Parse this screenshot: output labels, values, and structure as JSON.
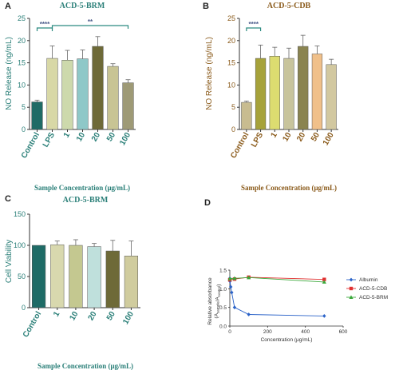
{
  "panels": {
    "A": {
      "letter": "A"
    },
    "B": {
      "letter": "B"
    },
    "C": {
      "letter": "C"
    },
    "D": {
      "letter": "D"
    }
  },
  "chart_data": [
    {
      "id": "A",
      "type": "bar",
      "title": "ACD-5-BRM",
      "xlabel": "Sample Concentration (μg/mL)",
      "ylabel": "NO Release (ng/mL)",
      "ylim": [
        0,
        25
      ],
      "yticks": [
        0,
        5,
        10,
        15,
        20,
        25
      ],
      "categories": [
        "Control",
        "LPS",
        "1",
        "10",
        "20",
        "50",
        "100"
      ],
      "values": [
        6.2,
        16.0,
        15.6,
        15.9,
        18.7,
        14.2,
        10.5
      ],
      "errors": [
        0.4,
        2.8,
        2.2,
        2.0,
        2.2,
        0.6,
        0.7
      ],
      "colors": [
        "#1e6b66",
        "#d8d8a6",
        "#cdd9ac",
        "#8ec8c8",
        "#6e6a38",
        "#c8c494",
        "#9e9a76"
      ],
      "text_color": "#2a7f78",
      "significance": [
        {
          "label": "****",
          "from": 0,
          "to": 1
        },
        {
          "label": "**",
          "from": 1,
          "to": 6
        }
      ]
    },
    {
      "id": "B",
      "type": "bar",
      "title": "ACD-5-CDB",
      "xlabel": "Sample Concentration (μg/mL)",
      "ylabel": "NO Release (ng/mL)",
      "ylim": [
        0,
        25
      ],
      "yticks": [
        0,
        5,
        10,
        15,
        20,
        25
      ],
      "categories": [
        "Control",
        "LPS",
        "1",
        "10",
        "20",
        "50",
        "100"
      ],
      "values": [
        6.1,
        16.0,
        16.5,
        16.0,
        18.7,
        17.0,
        14.6
      ],
      "errors": [
        0.3,
        3.0,
        2.0,
        2.3,
        2.5,
        1.8,
        1.2
      ],
      "colors": [
        "#c8bc90",
        "#a6a23a",
        "#dcdc70",
        "#c8c49c",
        "#8a8450",
        "#f0c08a",
        "#d2c8a0"
      ],
      "text_color": "#8a5a1a",
      "significance": [
        {
          "label": "****",
          "from": 0,
          "to": 1
        }
      ]
    },
    {
      "id": "C",
      "type": "bar",
      "title": "ACD-5-BRM",
      "xlabel": "Sample Concentration (μg/mL)",
      "ylabel": "Cell Viability",
      "ylim": [
        0,
        150
      ],
      "yticks": [
        0,
        50,
        100,
        150
      ],
      "categories": [
        "Control",
        "1",
        "10",
        "20",
        "50",
        "100"
      ],
      "values": [
        100,
        101,
        100,
        98,
        91,
        83
      ],
      "errors": [
        0,
        6,
        9,
        5,
        17,
        24
      ],
      "colors": [
        "#1e6b66",
        "#d8d8ae",
        "#c4c890",
        "#bfe0dc",
        "#6e6a38",
        "#d0cc9e"
      ],
      "text_color": "#2a7f78"
    },
    {
      "id": "D",
      "type": "line",
      "xlabel": "Concentration (μg/mL)",
      "ylabel": "Relative absorbance (A_sample/A_control)",
      "ylabel_line1": "Relative absorbance",
      "ylabel_line2": "(A",
      "ylabel_sub1": "sample",
      "ylabel_mid": "/A",
      "ylabel_sub2": "control",
      "ylabel_end": ")",
      "xlim": [
        0,
        600
      ],
      "ylim": [
        0,
        1.5
      ],
      "xticks": [
        0,
        200,
        400,
        600
      ],
      "yticks": [
        0,
        0.5,
        1.0,
        1.5
      ],
      "ytick_labels": [
        "0.0",
        "0.5",
        "1.0",
        "1.5"
      ],
      "legend_position": "top-right",
      "series": [
        {
          "name": "Albumin",
          "color": "#2a62c8",
          "marker": "diamond",
          "x": [
            0,
            1,
            5,
            10,
            25,
            100,
            500
          ],
          "y": [
            1.28,
            1.2,
            1.05,
            0.9,
            0.5,
            0.31,
            0.27
          ]
        },
        {
          "name": "ACD-5-CDB",
          "color": "#e03030",
          "marker": "square",
          "x": [
            0,
            25,
            100,
            500
          ],
          "y": [
            1.24,
            1.26,
            1.31,
            1.25
          ]
        },
        {
          "name": "ACD-5-BRM",
          "color": "#3aa83a",
          "marker": "triangle",
          "x": [
            0,
            25,
            100,
            500
          ],
          "y": [
            1.27,
            1.28,
            1.3,
            1.18
          ]
        }
      ]
    }
  ]
}
